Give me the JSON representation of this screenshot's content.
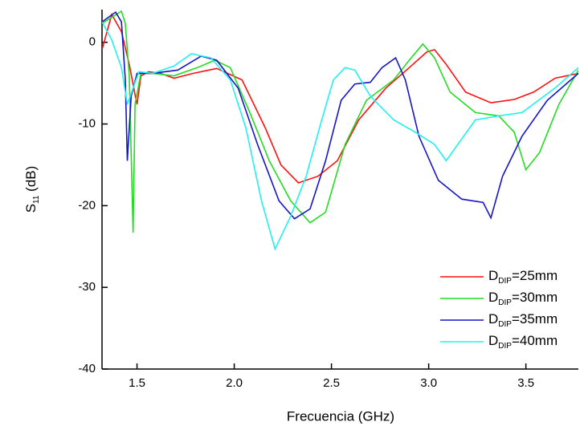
{
  "chart_data": {
    "type": "line",
    "xlabel": "Frecuencia (GHz)",
    "ylabel": "S11 (dB)",
    "xlim": [
      1.32,
      3.77
    ],
    "ylim": [
      -40,
      4
    ],
    "xticks": [
      {
        "value": 1.5,
        "label": "1.5"
      },
      {
        "value": 2.0,
        "label": "2.0"
      },
      {
        "value": 2.5,
        "label": "2.5"
      },
      {
        "value": 3.0,
        "label": "3.0"
      },
      {
        "value": 3.5,
        "label": "3.5"
      }
    ],
    "yticks": [
      0,
      -10,
      -20,
      -30,
      -40
    ],
    "legend": "lower right",
    "series": [
      {
        "name": "DDIP=25mm",
        "color": "#ff1010",
        "x": [
          1.32,
          1.37,
          1.42,
          1.46,
          1.49,
          1.5,
          1.52,
          1.56,
          1.62,
          1.69,
          1.79,
          1.91,
          2.04,
          2.16,
          2.24,
          2.33,
          2.43,
          2.53,
          2.64,
          2.78,
          2.9,
          2.99,
          3.03,
          3.09,
          3.19,
          3.32,
          3.44,
          3.54,
          3.65,
          3.77
        ],
        "values": [
          -0.9,
          3.4,
          1.3,
          -2.7,
          -6.4,
          -7.6,
          -4.1,
          -3.6,
          -3.8,
          -4.4,
          -3.8,
          -3.2,
          -4.6,
          -10.5,
          -15,
          -17.2,
          -16.4,
          -14.5,
          -9.5,
          -5.6,
          -3.1,
          -1.2,
          -0.9,
          -2.7,
          -6.1,
          -7.4,
          -7,
          -6.1,
          -4.4,
          -3.8
        ]
      },
      {
        "name": "DDIP=30mm",
        "color": "#22dd22",
        "x": [
          1.32,
          1.42,
          1.44,
          1.46,
          1.48,
          1.49,
          1.52,
          1.58,
          1.69,
          1.81,
          1.9,
          1.98,
          2.08,
          2.18,
          2.29,
          2.39,
          2.47,
          2.57,
          2.68,
          2.82,
          2.9,
          2.97,
          3.03,
          3.11,
          3.24,
          3.36,
          3.44,
          3.5,
          3.57,
          3.67,
          3.77
        ],
        "values": [
          2.3,
          3.8,
          2.3,
          -4.1,
          -23.3,
          -7.6,
          -3.8,
          -3.8,
          -4.1,
          -3.1,
          -2.2,
          -3.1,
          -8.6,
          -14.5,
          -19.4,
          -22.1,
          -20.8,
          -12.5,
          -7.1,
          -4.6,
          -2.2,
          -0.2,
          -1.9,
          -6.1,
          -8.6,
          -9.0,
          -11,
          -15.6,
          -13.5,
          -7.6,
          -3.4
        ]
      },
      {
        "name": "DDIP=35mm",
        "color": "#1414c8",
        "x": [
          1.32,
          1.39,
          1.42,
          1.44,
          1.45,
          1.47,
          1.5,
          1.58,
          1.71,
          1.83,
          1.91,
          2.02,
          2.12,
          2.23,
          2.31,
          2.39,
          2.47,
          2.55,
          2.62,
          2.7,
          2.76,
          2.83,
          2.88,
          2.95,
          3.05,
          3.17,
          3.28,
          3.32,
          3.38,
          3.48,
          3.61,
          3.77
        ],
        "values": [
          2.5,
          3.7,
          2.5,
          -4.6,
          -14.5,
          -6.6,
          -3.8,
          -3.8,
          -3.4,
          -1.7,
          -2.2,
          -5.6,
          -12.5,
          -19.4,
          -21.6,
          -20.4,
          -14.5,
          -7.1,
          -5.1,
          -4.9,
          -3.1,
          -1.9,
          -4.6,
          -11.5,
          -16.9,
          -19.2,
          -19.6,
          -21.5,
          -16.4,
          -11.5,
          -7.1,
          -3.8
        ]
      },
      {
        "name": "DDIP=40mm",
        "color": "#22f0f0",
        "x": [
          1.32,
          1.37,
          1.42,
          1.45,
          1.48,
          1.51,
          1.58,
          1.69,
          1.78,
          1.88,
          1.98,
          2.06,
          2.14,
          2.21,
          2.29,
          2.37,
          2.45,
          2.51,
          2.57,
          2.62,
          2.7,
          2.82,
          2.93,
          3.03,
          3.09,
          3.15,
          3.24,
          3.36,
          3.48,
          3.65,
          3.77
        ],
        "values": [
          2.5,
          0.3,
          -3.1,
          -7.6,
          -5.6,
          -3.6,
          -3.8,
          -2.9,
          -1.4,
          -1.9,
          -4.6,
          -10.5,
          -19.4,
          -25.3,
          -21.3,
          -16.4,
          -9.5,
          -4.6,
          -3.1,
          -3.4,
          -6.6,
          -9.5,
          -11,
          -12.5,
          -14.5,
          -12.5,
          -9.5,
          -9.0,
          -8.6,
          -5.6,
          -3.1
        ]
      }
    ]
  }
}
